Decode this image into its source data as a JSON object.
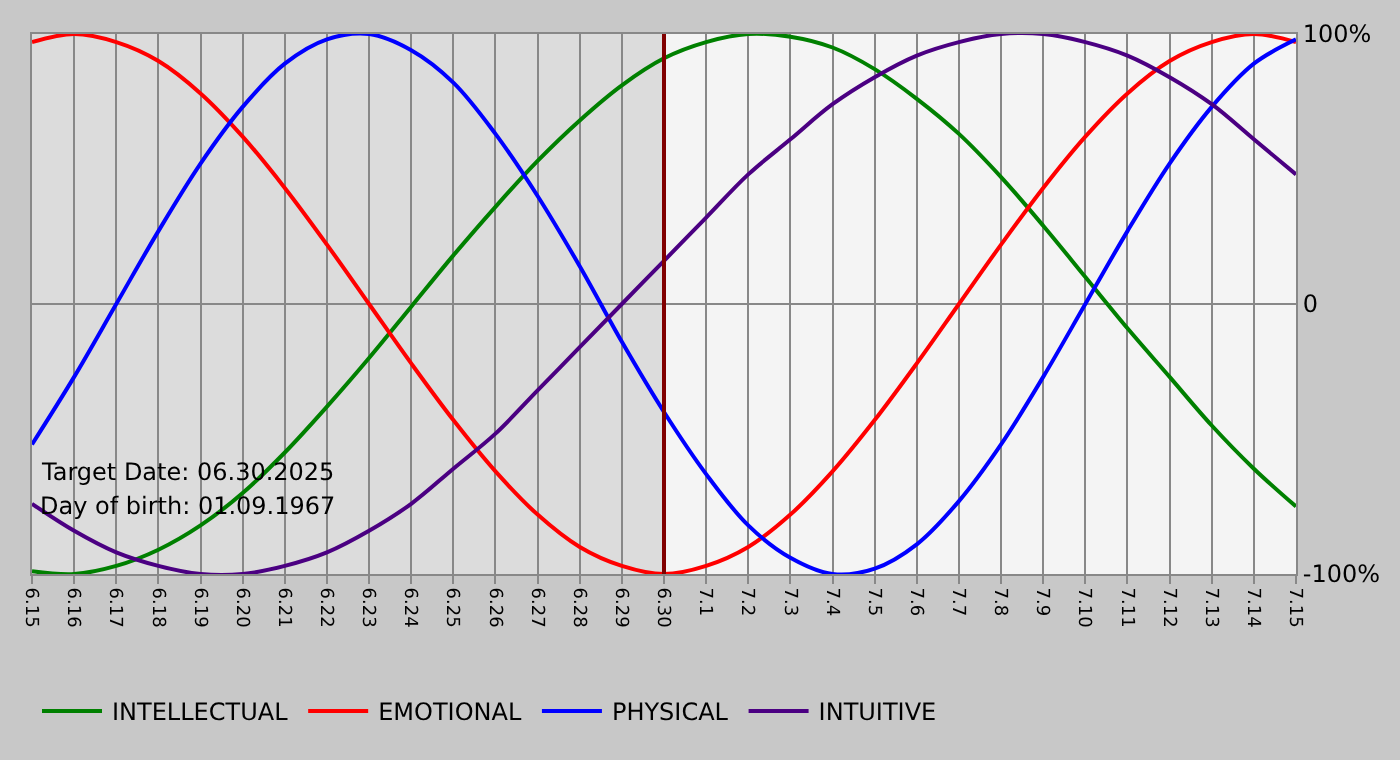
{
  "chart_data": {
    "type": "line",
    "categories": [
      "6.15",
      "6.16",
      "6.17",
      "6.18",
      "6.19",
      "6.20",
      "6.21",
      "6.22",
      "6.23",
      "6.24",
      "6.25",
      "6.26",
      "6.27",
      "6.28",
      "6.29",
      "6.30",
      "7.1",
      "7.2",
      "7.3",
      "7.4",
      "7.5",
      "7.6",
      "7.7",
      "7.8",
      "7.9",
      "7.10",
      "7.11",
      "7.12",
      "7.13",
      "7.14",
      "7.15"
    ],
    "series": [
      {
        "name": "INTELLECTUAL",
        "color": "#008000",
        "values": [
          -99,
          -100,
          -97,
          -91,
          -82,
          -70,
          -55,
          -38,
          -20,
          -1,
          18,
          36,
          53,
          68,
          81,
          91,
          97,
          100,
          99,
          95,
          87,
          76,
          63,
          47,
          29,
          10,
          -9,
          -27,
          -45,
          -61,
          -75
        ]
      },
      {
        "name": "EMOTIONAL",
        "color": "#ff0000",
        "values": [
          97,
          100,
          97,
          90,
          78,
          62,
          43,
          22,
          0,
          -22,
          -43,
          -62,
          -78,
          -90,
          -97,
          -100,
          -97,
          -90,
          -78,
          -62,
          -43,
          -22,
          0,
          22,
          43,
          62,
          78,
          90,
          97,
          100,
          97
        ]
      },
      {
        "name": "PHYSICAL",
        "color": "#0000ff",
        "values": [
          -52,
          -27,
          0,
          27,
          52,
          73,
          89,
          98,
          100,
          94,
          82,
          63,
          40,
          14,
          -14,
          -40,
          -63,
          -82,
          -94,
          -100,
          -98,
          -89,
          -73,
          -52,
          -27,
          0,
          27,
          52,
          73,
          89,
          98
        ]
      },
      {
        "name": "INTUITIVE",
        "color": "#4b0082",
        "values": [
          -74,
          -84,
          -92,
          -97,
          -100,
          -100,
          -97,
          -92,
          -84,
          -74,
          -61,
          -48,
          -32,
          -16,
          0,
          16,
          32,
          48,
          61,
          74,
          84,
          92,
          97,
          100,
          100,
          97,
          92,
          84,
          74,
          61,
          48
        ]
      }
    ],
    "ylim": [
      -100,
      100
    ],
    "yticks": [
      {
        "value": -100,
        "label": "-100%"
      },
      0,
      {
        "value": 100,
        "label": "100%"
      }
    ],
    "grid": true,
    "legend": "bottom left",
    "marker": "none",
    "line_style": "solid",
    "ref_lines": [
      {
        "axis": "x",
        "value": "6.30",
        "color": "#800000"
      }
    ],
    "bands": [
      {
        "axis": "x",
        "from": "6.15",
        "to": "6.30",
        "color": "#dcdcdc"
      }
    ],
    "annotations": [
      "Target Date: 06.30.2025",
      "Day of birth: 01.09.1967"
    ]
  }
}
